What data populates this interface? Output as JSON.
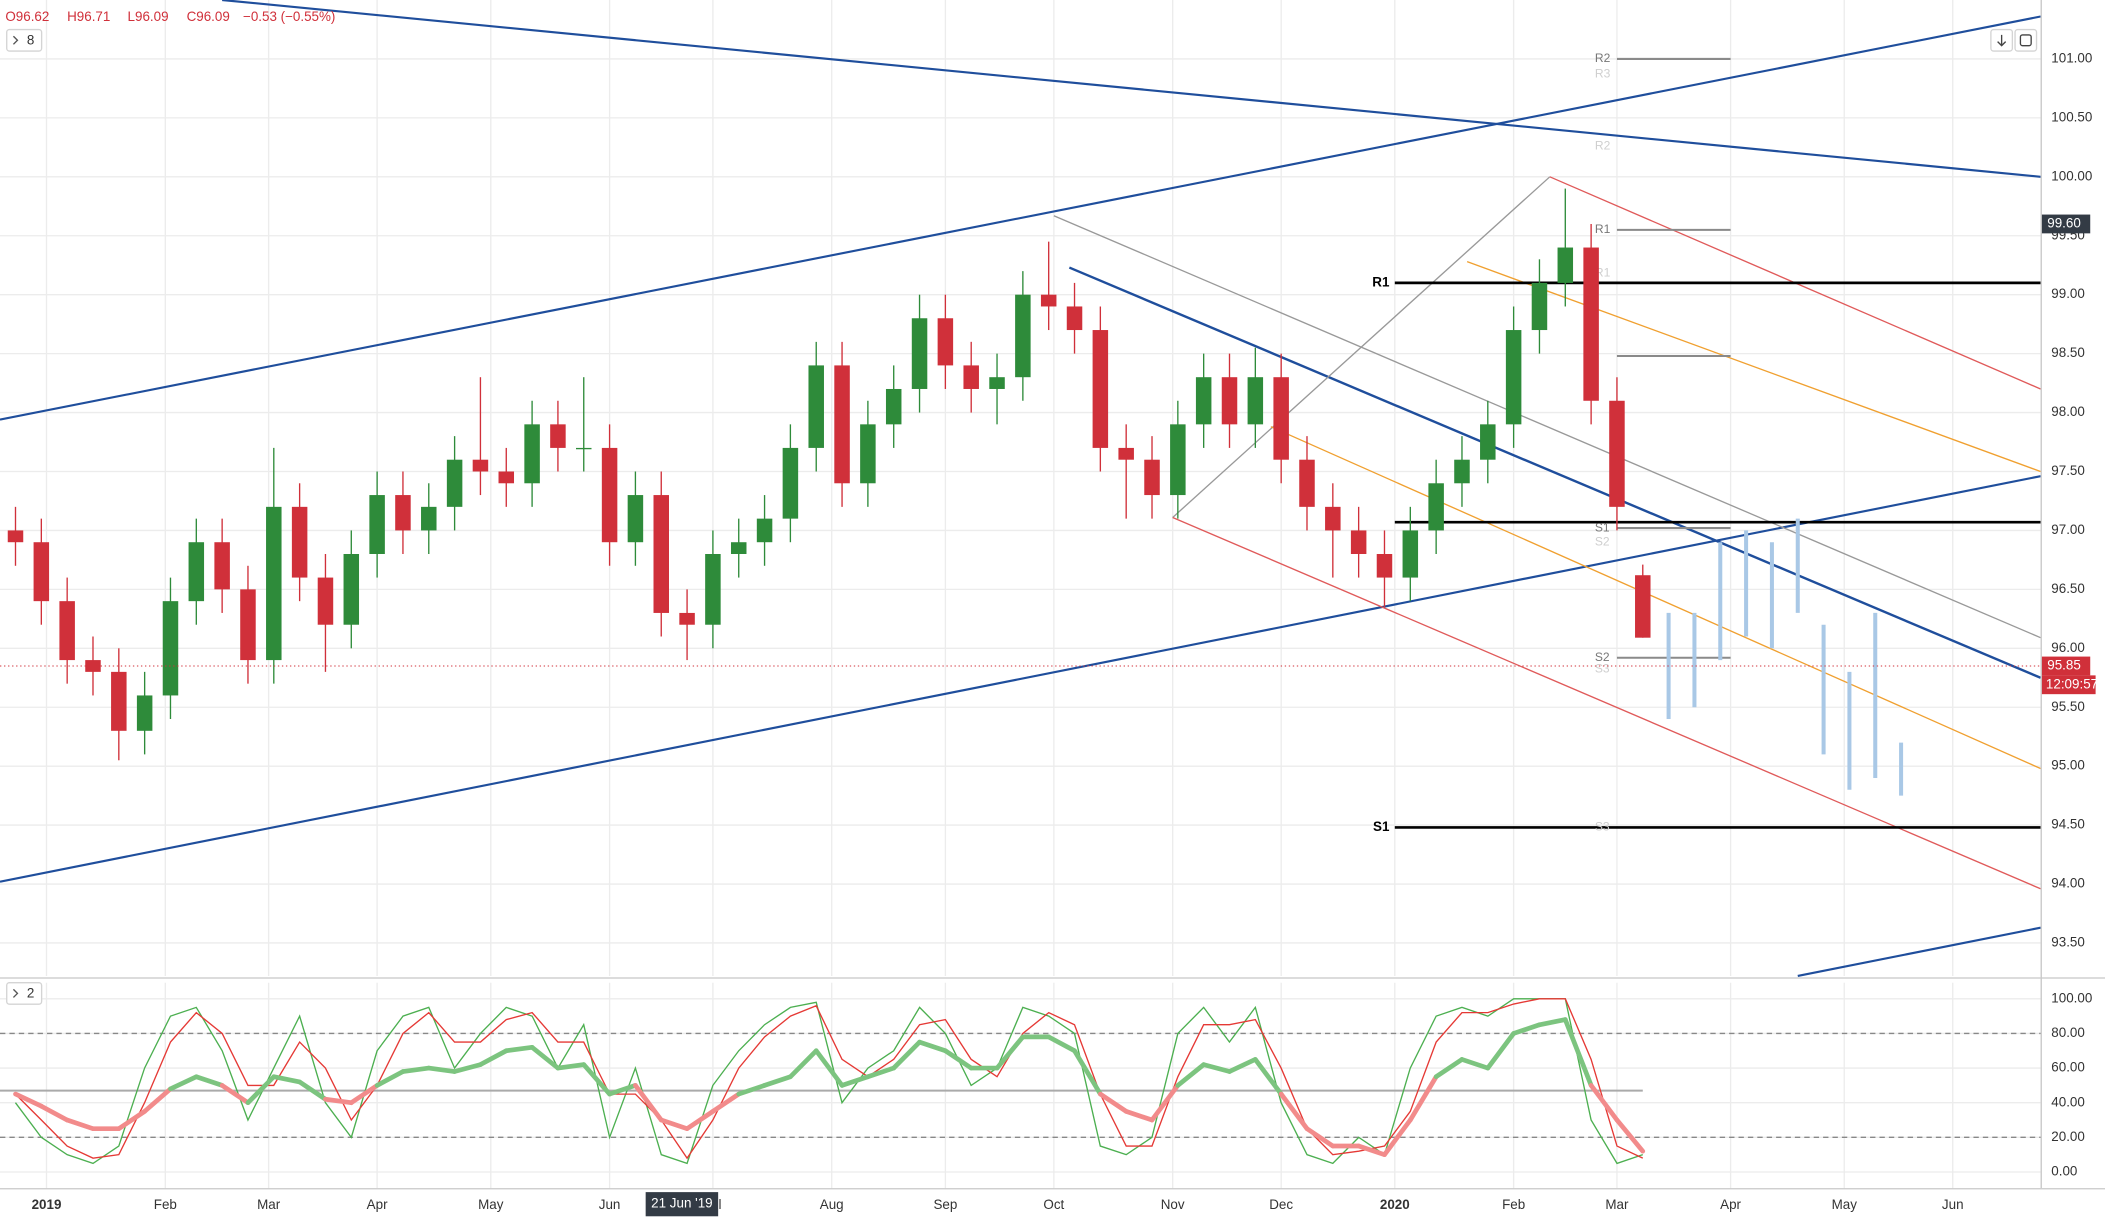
{
  "chart_data": [
    {
      "type": "candlestick",
      "header": {
        "open": "O96.62",
        "high": "H96.71",
        "low": "L96.09",
        "close": "C96.09",
        "change": "−0.53 (−0.55%)"
      },
      "pane_toggle": "8",
      "xlim": [
        "2018-12-19",
        "2020-06-24"
      ],
      "xticks": [
        {
          "value": "2019-01-01",
          "label": "2019"
        },
        {
          "value": "2019-02-01",
          "label": "Feb"
        },
        {
          "value": "2019-03-01",
          "label": "Mar"
        },
        {
          "value": "2019-04-01",
          "label": "Apr"
        },
        {
          "value": "2019-05-01",
          "label": "May"
        },
        {
          "value": "2019-06-01",
          "label": "Jun"
        },
        {
          "value": "2019-07-01",
          "label": "Jul"
        },
        {
          "value": "2019-08-01",
          "label": "Aug"
        },
        {
          "value": "2019-09-01",
          "label": "Sep"
        },
        {
          "value": "2019-10-01",
          "label": "Oct"
        },
        {
          "value": "2019-11-01",
          "label": "Nov"
        },
        {
          "value": "2019-12-01",
          "label": "Dec"
        },
        {
          "value": "2020-01-01",
          "label": "2020"
        },
        {
          "value": "2020-02-01",
          "label": "Feb"
        },
        {
          "value": "2020-03-01",
          "label": "Mar"
        },
        {
          "value": "2020-04-01",
          "label": "Apr"
        },
        {
          "value": "2020-05-01",
          "label": "May"
        },
        {
          "value": "2020-06-01",
          "label": "Jun"
        }
      ],
      "crosshair_x": {
        "value": "2019-06-21",
        "label": "21 Jun '19"
      },
      "ylim": [
        93.22,
        101.5
      ],
      "yticks": [
        {
          "value": 93.5,
          "label": "93.50"
        },
        {
          "value": 94,
          "label": "94.00"
        },
        {
          "value": 94.5,
          "label": "94.50"
        },
        {
          "value": 95,
          "label": "95.00"
        },
        {
          "value": 95.5,
          "label": "95.50"
        },
        {
          "value": 96,
          "label": "96.00"
        },
        {
          "value": 96.5,
          "label": "96.50"
        },
        {
          "value": 97,
          "label": "97.00"
        },
        {
          "value": 97.5,
          "label": "97.50"
        },
        {
          "value": 98,
          "label": "98.00"
        },
        {
          "value": 98.5,
          "label": "98.50"
        },
        {
          "value": 99,
          "label": "99.00"
        },
        {
          "value": 99.5,
          "label": "99.50"
        },
        {
          "value": 100,
          "label": "100.00"
        },
        {
          "value": 100.5,
          "label": "100.50"
        },
        {
          "value": 101,
          "label": "101.00"
        }
      ],
      "grid": true,
      "up_color": "#2e8b3a",
      "down_color": "#d0303a",
      "x": [
        "2018-12-24",
        "2018-12-31",
        "2019-01-07",
        "2019-01-14",
        "2019-01-21",
        "2019-01-28",
        "2019-02-04",
        "2019-02-11",
        "2019-02-18",
        "2019-02-25",
        "2019-03-04",
        "2019-03-11",
        "2019-03-18",
        "2019-03-25",
        "2019-04-01",
        "2019-04-08",
        "2019-04-15",
        "2019-04-22",
        "2019-04-29",
        "2019-05-06",
        "2019-05-13",
        "2019-05-20",
        "2019-05-27",
        "2019-06-03",
        "2019-06-10",
        "2019-06-17",
        "2019-06-24",
        "2019-07-01",
        "2019-07-08",
        "2019-07-15",
        "2019-07-22",
        "2019-07-29",
        "2019-08-05",
        "2019-08-12",
        "2019-08-19",
        "2019-08-26",
        "2019-09-02",
        "2019-09-09",
        "2019-09-16",
        "2019-09-23",
        "2019-09-30",
        "2019-10-07",
        "2019-10-14",
        "2019-10-21",
        "2019-10-28",
        "2019-11-04",
        "2019-11-11",
        "2019-11-18",
        "2019-11-25",
        "2019-12-02",
        "2019-12-09",
        "2019-12-16",
        "2019-12-23",
        "2019-12-30",
        "2020-01-06",
        "2020-01-13",
        "2020-01-20",
        "2020-01-27",
        "2020-02-03",
        "2020-02-10",
        "2020-02-17",
        "2020-02-24",
        "2020-03-02",
        "2020-03-09"
      ],
      "open": [
        97.0,
        96.9,
        96.4,
        95.9,
        95.8,
        95.3,
        95.6,
        96.4,
        96.9,
        96.5,
        95.9,
        97.2,
        96.6,
        96.2,
        96.8,
        97.3,
        97.0,
        97.2,
        97.6,
        97.5,
        97.4,
        97.9,
        97.7,
        97.7,
        96.9,
        97.3,
        96.3,
        96.2,
        96.8,
        96.9,
        97.1,
        97.7,
        98.4,
        97.4,
        97.9,
        98.2,
        98.8,
        98.4,
        98.2,
        98.3,
        99.0,
        98.9,
        98.7,
        97.7,
        97.6,
        97.3,
        97.9,
        98.3,
        97.9,
        98.3,
        97.6,
        97.2,
        97.0,
        96.8,
        96.6,
        97.0,
        97.4,
        97.6,
        97.9,
        98.7,
        99.1,
        99.4,
        98.1,
        96.62
      ],
      "high": [
        97.2,
        97.1,
        96.6,
        96.1,
        96.0,
        95.8,
        96.6,
        97.1,
        97.1,
        96.7,
        97.7,
        97.4,
        96.8,
        97.0,
        97.5,
        97.5,
        97.4,
        97.8,
        98.3,
        97.7,
        98.1,
        98.1,
        98.3,
        97.9,
        97.5,
        97.5,
        96.5,
        97.0,
        97.1,
        97.3,
        97.9,
        98.6,
        98.6,
        98.1,
        98.4,
        99.0,
        99.0,
        98.6,
        98.5,
        99.2,
        99.45,
        99.1,
        98.9,
        97.9,
        97.8,
        98.1,
        98.5,
        98.5,
        98.55,
        98.5,
        97.8,
        97.4,
        97.2,
        97.0,
        97.2,
        97.6,
        97.8,
        98.1,
        98.9,
        99.3,
        99.9,
        99.6,
        98.3,
        96.71
      ],
      "low": [
        96.7,
        96.2,
        95.7,
        95.6,
        95.05,
        95.1,
        95.4,
        96.2,
        96.3,
        95.7,
        95.7,
        96.4,
        95.8,
        96.0,
        96.6,
        96.8,
        96.8,
        97.0,
        97.3,
        97.2,
        97.2,
        97.5,
        97.5,
        96.7,
        96.7,
        96.1,
        95.9,
        96.0,
        96.6,
        96.7,
        96.9,
        97.5,
        97.2,
        97.2,
        97.7,
        98.0,
        98.2,
        98.0,
        97.9,
        98.1,
        98.7,
        98.5,
        97.5,
        97.1,
        97.1,
        97.1,
        97.7,
        97.7,
        97.7,
        97.4,
        97.0,
        96.6,
        96.6,
        96.35,
        96.4,
        96.8,
        97.2,
        97.4,
        97.7,
        98.5,
        98.9,
        97.9,
        97.0,
        96.09
      ],
      "close": [
        96.9,
        96.4,
        95.9,
        95.8,
        95.3,
        95.6,
        96.4,
        96.9,
        96.5,
        95.9,
        97.2,
        96.6,
        96.2,
        96.8,
        97.3,
        97.0,
        97.2,
        97.6,
        97.5,
        97.4,
        97.9,
        97.7,
        97.7,
        96.9,
        97.3,
        96.3,
        96.2,
        96.8,
        96.9,
        97.1,
        97.7,
        98.4,
        97.4,
        97.9,
        98.2,
        98.8,
        98.4,
        98.2,
        98.3,
        99.0,
        98.9,
        98.7,
        97.7,
        97.6,
        97.3,
        97.9,
        98.3,
        97.9,
        98.3,
        97.6,
        97.2,
        97.0,
        96.8,
        96.6,
        97.0,
        97.4,
        97.6,
        97.9,
        98.7,
        99.1,
        99.4,
        98.1,
        97.2,
        96.09
      ],
      "projection": {
        "color": "#a9c8e6",
        "x": [
          "2020-03-16",
          "2020-03-23",
          "2020-03-30",
          "2020-04-06",
          "2020-04-13",
          "2020-04-20",
          "2020-04-27",
          "2020-05-04",
          "2020-05-11",
          "2020-05-18"
        ],
        "high": [
          96.3,
          96.3,
          96.9,
          97.0,
          96.9,
          97.1,
          96.2,
          95.8,
          96.3,
          95.2
        ],
        "low": [
          95.4,
          95.5,
          95.9,
          96.1,
          96.0,
          96.3,
          95.1,
          94.8,
          94.9,
          94.75
        ]
      },
      "trendlines": [
        {
          "color": "#1f4e9c",
          "width": 1.6,
          "x": [
            "2019-02-18",
            "2020-06-24"
          ],
          "y": [
            101.5,
            100.0
          ]
        },
        {
          "color": "#1f4e9c",
          "width": 1.6,
          "x": [
            "2018-12-19",
            "2020-06-24"
          ],
          "y": [
            97.94,
            101.36
          ]
        },
        {
          "color": "#1f4e9c",
          "width": 1.6,
          "x": [
            "2018-12-19",
            "2020-06-24"
          ],
          "y": [
            94.02,
            97.46
          ]
        },
        {
          "color": "#1f4e9c",
          "width": 1.6,
          "x": [
            "2020-04-20",
            "2020-06-24"
          ],
          "y": [
            93.22,
            93.63
          ]
        },
        {
          "color": "#1f4e9c",
          "width": 1.8,
          "x": [
            "2019-10-04",
            "2020-06-24"
          ],
          "y": [
            99.23,
            95.75
          ]
        },
        {
          "color": "#999999",
          "width": 1,
          "x": [
            "2019-10-01",
            "2020-06-24"
          ],
          "y": [
            99.67,
            96.09
          ]
        },
        {
          "color": "#999999",
          "width": 1,
          "x": [
            "2019-11-01",
            "2020-02-12"
          ],
          "y": [
            97.11,
            100.0
          ]
        },
        {
          "color": "#e05a5a",
          "width": 1,
          "x": [
            "2020-02-12",
            "2020-06-24"
          ],
          "y": [
            100.0,
            98.2
          ]
        },
        {
          "color": "#e05a5a",
          "width": 1,
          "x": [
            "2019-11-01",
            "2020-06-24"
          ],
          "y": [
            97.11,
            93.96
          ]
        },
        {
          "color": "#f0a030",
          "width": 1,
          "x": [
            "2020-01-21",
            "2020-06-24"
          ],
          "y": [
            99.28,
            97.5
          ]
        },
        {
          "color": "#f0a030",
          "width": 1,
          "x": [
            "2019-11-28",
            "2020-06-24"
          ],
          "y": [
            97.88,
            94.98
          ]
        }
      ],
      "levels": [
        {
          "label": "R1",
          "value": 99.1,
          "x": "2020-01-01",
          "color": "#000000",
          "width": 2
        },
        {
          "value": 97.07,
          "x": "2020-01-01",
          "color": "#000000",
          "width": 2
        },
        {
          "label": "S1",
          "value": 94.48,
          "x": "2020-01-01",
          "color": "#000000",
          "width": 2
        }
      ],
      "pivots": [
        {
          "label": "R2",
          "value": 101.0,
          "x": [
            "2020-03-02",
            "2020-04-01"
          ]
        },
        {
          "label": "R1",
          "value": 99.55,
          "x": [
            "2020-03-02",
            "2020-04-01"
          ]
        },
        {
          "value": 98.48,
          "x": [
            "2020-03-02",
            "2020-04-01"
          ]
        },
        {
          "label": "S1",
          "value": 97.02,
          "x": [
            "2020-03-02",
            "2020-04-01"
          ]
        },
        {
          "label": "S2",
          "value": 95.92,
          "x": [
            "2020-03-02",
            "2020-04-01"
          ]
        }
      ],
      "faded_pivots": [
        {
          "label": "R3",
          "value": 100.87
        },
        {
          "label": "R2",
          "value": 100.26
        },
        {
          "label": "R1",
          "value": 99.18
        },
        {
          "label": "S2",
          "value": 96.9
        },
        {
          "label": "S3",
          "value": 95.82
        },
        {
          "label": "S3",
          "value": 94.48
        }
      ],
      "price_badges": [
        {
          "value": 99.6,
          "label": "99.60",
          "color": "#333b45"
        },
        {
          "value": 95.85,
          "label": "95.85",
          "color": "#d0303a",
          "sublabel": "12:09:57"
        }
      ]
    },
    {
      "type": "oscillator",
      "pane_toggle": "2",
      "ylim": [
        -9.3,
        109.3
      ],
      "yticks": [
        {
          "value": 0,
          "label": "0.00"
        },
        {
          "value": 20,
          "label": "20.00"
        },
        {
          "value": 40,
          "label": "40.00"
        },
        {
          "value": 60,
          "label": "60.00"
        },
        {
          "value": 80,
          "label": "80.00"
        },
        {
          "value": 100,
          "label": "100.00"
        }
      ],
      "bands": [
        20,
        80
      ],
      "midline": 47,
      "series": [
        {
          "color": "#4caf50",
          "width": 1,
          "values": [
            40,
            20,
            10,
            5,
            15,
            60,
            90,
            95,
            70,
            30,
            60,
            90,
            40,
            20,
            70,
            90,
            95,
            60,
            80,
            95,
            90,
            60,
            85,
            20,
            60,
            10,
            5,
            50,
            70,
            85,
            95,
            98,
            40,
            60,
            70,
            95,
            80,
            50,
            60,
            95,
            90,
            80,
            15,
            10,
            20,
            80,
            95,
            75,
            95,
            40,
            10,
            5,
            20,
            10,
            60,
            90,
            95,
            90,
            100,
            100,
            100,
            30,
            5,
            10
          ]
        },
        {
          "color": "#e53935",
          "width": 1,
          "values": [
            45,
            30,
            15,
            8,
            10,
            40,
            75,
            92,
            80,
            50,
            50,
            75,
            60,
            30,
            50,
            80,
            92,
            75,
            75,
            88,
            92,
            75,
            75,
            45,
            45,
            30,
            8,
            30,
            60,
            78,
            90,
            96,
            65,
            55,
            65,
            85,
            88,
            65,
            55,
            80,
            92,
            85,
            45,
            15,
            15,
            55,
            85,
            85,
            88,
            60,
            25,
            10,
            12,
            15,
            35,
            75,
            92,
            92,
            97,
            100,
            100,
            65,
            15,
            8
          ]
        },
        {
          "color": "#7cc47f",
          "down_color": "#f28b8b",
          "width": 3.5,
          "values": [
            45,
            38,
            30,
            25,
            25,
            35,
            48,
            55,
            50,
            40,
            55,
            52,
            42,
            40,
            50,
            58,
            60,
            58,
            62,
            70,
            72,
            60,
            62,
            45,
            50,
            30,
            25,
            35,
            45,
            50,
            55,
            70,
            50,
            55,
            60,
            75,
            70,
            60,
            60,
            78,
            78,
            70,
            45,
            35,
            30,
            50,
            62,
            58,
            65,
            45,
            25,
            15,
            15,
            10,
            30,
            55,
            65,
            60,
            80,
            85,
            88,
            50,
            30,
            12
          ]
        }
      ]
    }
  ]
}
